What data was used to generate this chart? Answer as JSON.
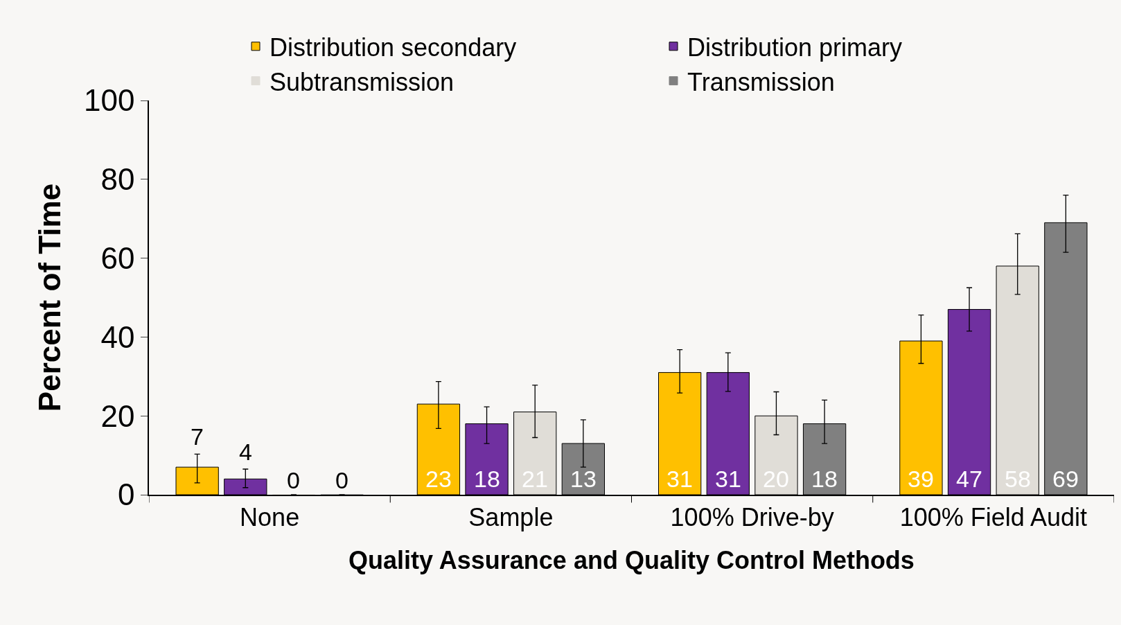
{
  "chart_data": {
    "type": "bar",
    "xlabel": "Quality Assurance and Quality Control Methods",
    "ylabel": "Percent of Time",
    "categories": [
      "None",
      "Sample",
      "100% Drive-by",
      "100% Field Audit"
    ],
    "series": [
      {
        "name": "Distribution secondary",
        "color": "#ffc000",
        "values": [
          7,
          23,
          31,
          39
        ],
        "errors": [
          [
            3,
            10.3
          ],
          [
            16.8,
            28.7
          ],
          [
            25.8,
            36.8
          ],
          [
            33.3,
            45.6
          ]
        ]
      },
      {
        "name": "Distribution primary",
        "color": "#7030a0",
        "values": [
          4,
          18,
          31,
          47
        ],
        "errors": [
          [
            1.8,
            6.5
          ],
          [
            13,
            22.3
          ],
          [
            26.2,
            36
          ],
          [
            41.5,
            52.5
          ]
        ]
      },
      {
        "name": "Subtransmission",
        "color": "#e0ddd7",
        "values": [
          0,
          21,
          20,
          58
        ],
        "errors": [
          null,
          [
            14.5,
            27.8
          ],
          [
            15.2,
            26.1
          ],
          [
            50.8,
            66.2
          ]
        ]
      },
      {
        "name": "Transmission",
        "color": "#808080",
        "values": [
          0,
          13,
          18,
          69
        ],
        "errors": [
          null,
          [
            7,
            19
          ],
          [
            13,
            24
          ],
          [
            61.5,
            76
          ]
        ]
      }
    ],
    "ylim": [
      0,
      100
    ],
    "yticks": [
      0,
      20,
      40,
      60,
      80,
      100
    ],
    "grid": false,
    "legend": "top",
    "data_labels": true
  }
}
